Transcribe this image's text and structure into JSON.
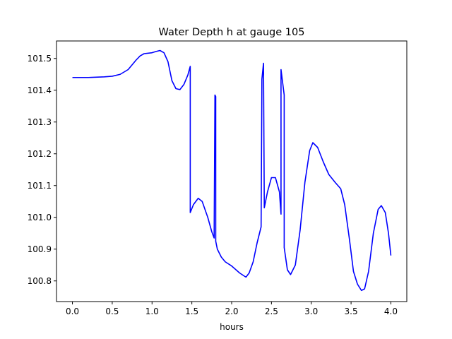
{
  "chart_data": {
    "type": "line",
    "title": "Water Depth h at gauge 105",
    "xlabel": "hours",
    "ylabel": "",
    "xlim": [
      -0.2,
      4.2
    ],
    "ylim": [
      100.735,
      101.555
    ],
    "x_ticks": [
      0.0,
      0.5,
      1.0,
      1.5,
      2.0,
      2.5,
      3.0,
      3.5,
      4.0
    ],
    "x_tick_labels": [
      "0.0",
      "0.5",
      "1.0",
      "1.5",
      "2.0",
      "2.5",
      "3.0",
      "3.5",
      "4.0"
    ],
    "y_ticks": [
      100.8,
      100.9,
      101.0,
      101.1,
      101.2,
      101.3,
      101.4,
      101.5
    ],
    "y_tick_labels": [
      "100.8",
      "100.9",
      "101.0",
      "101.1",
      "101.2",
      "101.3",
      "101.4",
      "101.5"
    ],
    "grid": false,
    "series": [
      {
        "color": "#0000ff",
        "points": [
          [
            0.0,
            101.44
          ],
          [
            0.2,
            101.44
          ],
          [
            0.4,
            101.442
          ],
          [
            0.5,
            101.444
          ],
          [
            0.6,
            101.45
          ],
          [
            0.7,
            101.465
          ],
          [
            0.8,
            101.495
          ],
          [
            0.85,
            101.508
          ],
          [
            0.9,
            101.515
          ],
          [
            1.0,
            101.518
          ],
          [
            1.05,
            101.522
          ],
          [
            1.1,
            101.525
          ],
          [
            1.15,
            101.518
          ],
          [
            1.2,
            101.49
          ],
          [
            1.25,
            101.43
          ],
          [
            1.3,
            101.405
          ],
          [
            1.35,
            101.402
          ],
          [
            1.4,
            101.418
          ],
          [
            1.45,
            101.448
          ],
          [
            1.48,
            101.475
          ],
          [
            1.48,
            101.015
          ],
          [
            1.52,
            101.04
          ],
          [
            1.58,
            101.06
          ],
          [
            1.63,
            101.05
          ],
          [
            1.7,
            101.0
          ],
          [
            1.75,
            100.955
          ],
          [
            1.78,
            100.935
          ],
          [
            1.79,
            101.385
          ],
          [
            1.8,
            101.38
          ],
          [
            1.8,
            100.925
          ],
          [
            1.82,
            100.9
          ],
          [
            1.87,
            100.875
          ],
          [
            1.92,
            100.86
          ],
          [
            2.0,
            100.847
          ],
          [
            2.1,
            100.825
          ],
          [
            2.16,
            100.815
          ],
          [
            2.18,
            100.812
          ],
          [
            2.22,
            100.825
          ],
          [
            2.27,
            100.86
          ],
          [
            2.32,
            100.92
          ],
          [
            2.37,
            100.97
          ],
          [
            2.38,
            101.435
          ],
          [
            2.4,
            101.485
          ],
          [
            2.41,
            101.03
          ],
          [
            2.45,
            101.08
          ],
          [
            2.5,
            101.125
          ],
          [
            2.55,
            101.125
          ],
          [
            2.6,
            101.08
          ],
          [
            2.62,
            101.01
          ],
          [
            2.62,
            101.465
          ],
          [
            2.66,
            101.385
          ],
          [
            2.66,
            100.905
          ],
          [
            2.7,
            100.835
          ],
          [
            2.74,
            100.82
          ],
          [
            2.8,
            100.85
          ],
          [
            2.86,
            100.96
          ],
          [
            2.92,
            101.11
          ],
          [
            2.98,
            101.21
          ],
          [
            3.02,
            101.235
          ],
          [
            3.08,
            101.22
          ],
          [
            3.15,
            101.175
          ],
          [
            3.22,
            101.135
          ],
          [
            3.3,
            101.11
          ],
          [
            3.37,
            101.09
          ],
          [
            3.42,
            101.04
          ],
          [
            3.48,
            100.93
          ],
          [
            3.53,
            100.83
          ],
          [
            3.58,
            100.79
          ],
          [
            3.63,
            100.77
          ],
          [
            3.67,
            100.775
          ],
          [
            3.72,
            100.83
          ],
          [
            3.78,
            100.95
          ],
          [
            3.84,
            101.025
          ],
          [
            3.88,
            101.037
          ],
          [
            3.93,
            101.015
          ],
          [
            3.97,
            100.95
          ],
          [
            4.0,
            100.88
          ]
        ]
      }
    ]
  }
}
